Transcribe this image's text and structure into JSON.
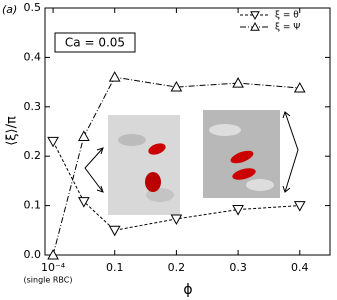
{
  "chart_data": {
    "type": "line",
    "panel_label": "(a)",
    "annotation": "Ca = 0.05",
    "x_label": "ϕ",
    "y_label": "⟨ξ⟩/π",
    "x_note": "(single RBC)",
    "x": [
      0.0001,
      0.05,
      0.1,
      0.2,
      0.3,
      0.4
    ],
    "series": [
      {
        "name": "ξ = θ",
        "color": "#000000",
        "dash": "dashed",
        "marker": "triangle-down",
        "values": [
          0.23,
          0.108,
          0.05,
          0.073,
          0.092,
          0.1
        ]
      },
      {
        "name": "ξ = Ψ",
        "color": "#000000",
        "dash": "dashdot",
        "marker": "triangle-up",
        "values": [
          0.0,
          0.24,
          0.36,
          0.34,
          0.348,
          0.338
        ]
      }
    ],
    "xlim": [
      -0.013,
      0.449
    ],
    "ylim": [
      0,
      0.5
    ],
    "xticks": [
      {
        "value": 0.0001,
        "label": "10⁻⁴"
      },
      0.1,
      0.2,
      0.3,
      0.4
    ],
    "yticks": [
      {
        "value": 0,
        "label": "0.0"
      },
      0.1,
      0.2,
      0.3,
      0.4,
      0.5
    ],
    "legend": "upper right",
    "grid": false
  }
}
